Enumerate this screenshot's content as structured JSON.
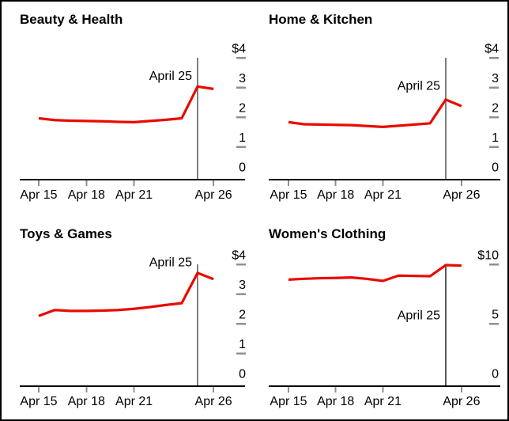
{
  "frame": {
    "background": "#ffffff",
    "border_color": "#000000"
  },
  "colors": {
    "series_red": "#e80b00",
    "event_line_gray": "#7f7f7f",
    "event_line_black": "#000000",
    "axis_black": "#000000",
    "tick_gray": "#909090",
    "text_black": "#000000"
  },
  "chart_data": [
    {
      "type": "line",
      "title": "Beauty & Health",
      "x": [
        "Apr 15",
        "Apr 16",
        "Apr 17",
        "Apr 18",
        "Apr 19",
        "Apr 20",
        "Apr 21",
        "Apr 22",
        "Apr 23",
        "Apr 24",
        "Apr 25",
        "Apr 26"
      ],
      "values": [
        1.96,
        1.9,
        1.88,
        1.87,
        1.86,
        1.84,
        1.83,
        1.87,
        1.91,
        1.96,
        3.03,
        2.95
      ],
      "ylim": [
        0,
        4
      ],
      "yticks": [
        0,
        1,
        2,
        3,
        4
      ],
      "ytick_labels": [
        "0",
        "1",
        "2",
        "3",
        "$4"
      ],
      "xtick_labels": [
        "Apr 15",
        "Apr 18",
        "Apr 21",
        "Apr 26"
      ],
      "xtick_days": [
        0,
        3,
        6,
        11
      ],
      "grid": false,
      "legend": "none",
      "annotation": {
        "label": "April 25",
        "x": "Apr 25",
        "day": 10,
        "label_value_y": 3.4
      },
      "vline_style": "gray"
    },
    {
      "type": "line",
      "title": "Home & Kitchen",
      "x": [
        "Apr 15",
        "Apr 16",
        "Apr 17",
        "Apr 18",
        "Apr 19",
        "Apr 20",
        "Apr 21",
        "Apr 22",
        "Apr 23",
        "Apr 24",
        "Apr 25",
        "Apr 26"
      ],
      "values": [
        1.83,
        1.76,
        1.75,
        1.74,
        1.73,
        1.7,
        1.67,
        1.71,
        1.75,
        1.79,
        2.59,
        2.37
      ],
      "ylim": [
        0,
        4
      ],
      "yticks": [
        0,
        1,
        2,
        3,
        4
      ],
      "ytick_labels": [
        "0",
        "1",
        "2",
        "3",
        "$4"
      ],
      "xtick_labels": [
        "Apr 15",
        "Apr 18",
        "Apr 21",
        "Apr 26"
      ],
      "xtick_days": [
        0,
        3,
        6,
        11
      ],
      "grid": false,
      "legend": "none",
      "annotation": {
        "label": "April 25",
        "x": "Apr 25",
        "day": 10,
        "label_value_y": 3.07
      },
      "vline_style": "gray"
    },
    {
      "type": "line",
      "title": "Toys & Games",
      "x": [
        "Apr 15",
        "Apr 16",
        "Apr 17",
        "Apr 18",
        "Apr 19",
        "Apr 20",
        "Apr 21",
        "Apr 22",
        "Apr 23",
        "Apr 24",
        "Apr 25",
        "Apr 26"
      ],
      "values": [
        2.26,
        2.46,
        2.43,
        2.43,
        2.44,
        2.46,
        2.5,
        2.56,
        2.63,
        2.69,
        3.71,
        3.5
      ],
      "ylim": [
        0,
        4
      ],
      "yticks": [
        0,
        1,
        2,
        3,
        4
      ],
      "ytick_labels": [
        "0",
        "1",
        "2",
        "3",
        "$4"
      ],
      "xtick_labels": [
        "Apr 15",
        "Apr 18",
        "Apr 21",
        "Apr 26"
      ],
      "xtick_days": [
        0,
        3,
        6,
        11
      ],
      "grid": false,
      "legend": "none",
      "annotation": {
        "label": "April 25",
        "x": "Apr 25",
        "day": 10,
        "label_value_y": 4.08
      },
      "vline_style": "gray"
    },
    {
      "type": "line",
      "title": "Women's Clothing",
      "x": [
        "Apr 15",
        "Apr 16",
        "Apr 17",
        "Apr 18",
        "Apr 19",
        "Apr 20",
        "Apr 21",
        "Apr 22",
        "Apr 23",
        "Apr 24",
        "Apr 25",
        "Apr 26"
      ],
      "values": [
        8.71,
        8.78,
        8.83,
        8.85,
        8.89,
        8.77,
        8.6,
        9.05,
        9.02,
        9.0,
        9.93,
        9.89
      ],
      "ylim": [
        0,
        10
      ],
      "yticks": [
        0,
        5,
        10
      ],
      "ytick_labels": [
        "0",
        "5",
        "$10"
      ],
      "xtick_labels": [
        "Apr 15",
        "Apr 18",
        "Apr 21",
        "Apr 26"
      ],
      "xtick_days": [
        0,
        3,
        6,
        11
      ],
      "grid": false,
      "legend": "none",
      "annotation": {
        "label": "April 25",
        "x": "Apr 25",
        "day": 10,
        "label_value_y": 5.73
      },
      "vline_style": "black"
    }
  ]
}
